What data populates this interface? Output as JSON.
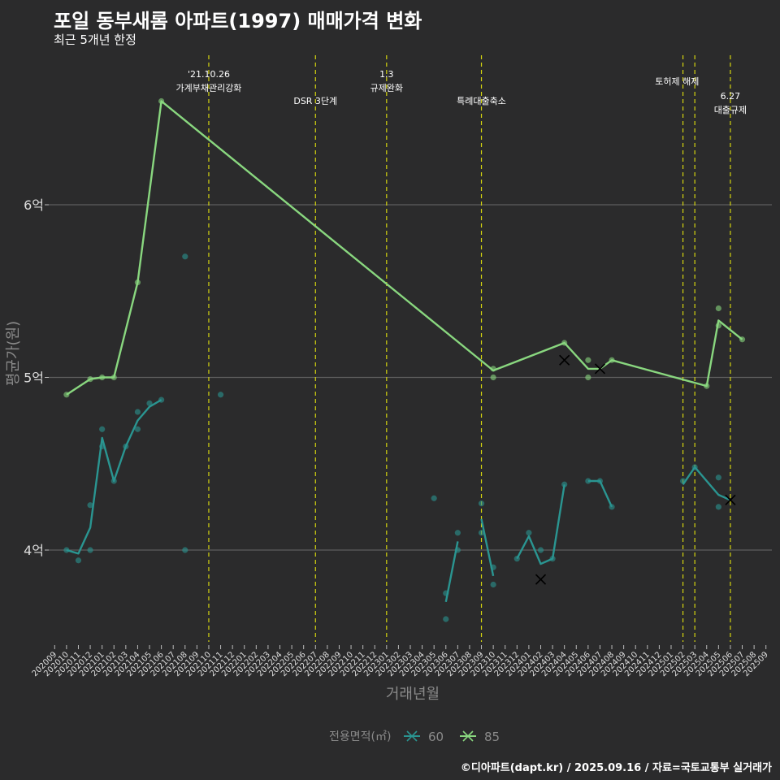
{
  "chart_data": {
    "type": "line",
    "title": "포일 동부새롬 아파트(1997) 매매가격 변화",
    "subtitle": "최근 5개년 한정",
    "xlabel": "거래년월",
    "ylabel": "평균가(원)",
    "caption": "©디아파트(dapt.kr) / 2025.09.16 / 자료=국토교통부 실거래가",
    "legend_title": "전용면적(㎡)",
    "months": [
      "202009",
      "202010",
      "202011",
      "202012",
      "202101",
      "202102",
      "202103",
      "202104",
      "202105",
      "202106",
      "202107",
      "202108",
      "202109",
      "202110",
      "202111",
      "202112",
      "202201",
      "202202",
      "202203",
      "202204",
      "202205",
      "202206",
      "202207",
      "202208",
      "202209",
      "202210",
      "202211",
      "202212",
      "202301",
      "202302",
      "202303",
      "202304",
      "202305",
      "202306",
      "202307",
      "202308",
      "202309",
      "202310",
      "202311",
      "202312",
      "202401",
      "202402",
      "202403",
      "202404",
      "202405",
      "202406",
      "202407",
      "202408",
      "202409",
      "202410",
      "202411",
      "202412",
      "202501",
      "202502",
      "202503",
      "202504",
      "202505",
      "202506",
      "202507",
      "202508",
      "202509"
    ],
    "y_ticks": [
      {
        "v": 4,
        "label": "4억"
      },
      {
        "v": 5,
        "label": "5억"
      },
      {
        "v": 6,
        "label": "6억"
      }
    ],
    "ylim": [
      3.5,
      6.9
    ],
    "series": [
      {
        "name": "60",
        "color": "#2a9591",
        "line": [
          [
            1,
            4.0
          ],
          [
            2,
            3.98
          ],
          [
            3,
            4.13
          ],
          [
            4,
            4.65
          ],
          [
            5,
            4.4
          ],
          [
            6,
            4.6
          ],
          [
            7,
            4.75
          ],
          [
            8,
            4.83
          ],
          [
            9,
            4.87
          ],
          null,
          [
            33,
            3.7
          ],
          [
            34,
            4.05
          ],
          null,
          [
            36,
            4.18
          ],
          [
            37,
            3.85
          ],
          null,
          [
            39,
            3.95
          ],
          [
            40,
            4.08
          ],
          [
            41,
            3.92
          ],
          [
            42,
            3.95
          ],
          [
            43,
            4.38
          ],
          null,
          [
            45,
            4.4
          ],
          [
            46,
            4.4
          ],
          [
            47,
            4.25
          ],
          null,
          [
            53,
            4.38
          ],
          [
            54,
            4.48
          ],
          [
            56,
            4.32
          ],
          [
            57,
            4.29
          ]
        ],
        "points": [
          [
            1,
            4.0
          ],
          [
            2,
            3.94
          ],
          [
            3,
            4.26
          ],
          [
            3,
            4.0
          ],
          [
            4,
            4.7
          ],
          [
            4,
            4.6
          ],
          [
            5,
            4.4
          ],
          [
            6,
            4.6
          ],
          [
            7,
            4.8
          ],
          [
            7,
            4.7
          ],
          [
            8,
            4.85
          ],
          [
            9,
            4.87
          ],
          [
            11,
            5.7
          ],
          [
            11,
            4.0
          ],
          [
            14,
            4.9
          ],
          [
            32,
            4.3
          ],
          [
            33,
            3.75
          ],
          [
            33,
            3.6
          ],
          [
            34,
            4.1
          ],
          [
            34,
            4.0
          ],
          [
            36,
            4.27
          ],
          [
            36,
            4.1
          ],
          [
            37,
            3.9
          ],
          [
            37,
            3.8
          ],
          [
            39,
            3.95
          ],
          [
            40,
            4.1
          ],
          [
            41,
            4.0
          ],
          [
            42,
            3.95
          ],
          [
            43,
            4.38
          ],
          [
            45,
            4.4
          ],
          [
            46,
            4.4
          ],
          [
            47,
            4.25
          ],
          [
            53,
            4.4
          ],
          [
            54,
            4.48
          ],
          [
            56,
            4.42
          ],
          [
            56,
            4.25
          ]
        ],
        "cancelled": [
          [
            41,
            3.83
          ],
          [
            57,
            4.29
          ]
        ]
      },
      {
        "name": "85",
        "color": "#89d77f",
        "line": [
          [
            1,
            4.9
          ],
          [
            3,
            4.99
          ],
          [
            4,
            5.0
          ],
          [
            5,
            5.0
          ],
          [
            7,
            5.55
          ],
          [
            9,
            6.6
          ],
          [
            37,
            5.04
          ],
          [
            43,
            5.2
          ],
          [
            45,
            5.05
          ],
          [
            46,
            5.05
          ],
          [
            47,
            5.1
          ],
          [
            55,
            4.95
          ],
          [
            56,
            5.33
          ],
          [
            58,
            5.22
          ]
        ],
        "points": [
          [
            1,
            4.9
          ],
          [
            3,
            4.99
          ],
          [
            4,
            5.0
          ],
          [
            5,
            5.0
          ],
          [
            7,
            5.55
          ],
          [
            9,
            6.6
          ],
          [
            37,
            5.05
          ],
          [
            37,
            5.0
          ],
          [
            43,
            5.2
          ],
          [
            45,
            5.1
          ],
          [
            45,
            5.0
          ],
          [
            47,
            5.1
          ],
          [
            55,
            4.95
          ],
          [
            56,
            5.4
          ],
          [
            56,
            5.3
          ],
          [
            58,
            5.22
          ]
        ],
        "cancelled": [
          [
            43,
            5.1
          ],
          [
            46,
            5.05
          ]
        ]
      }
    ],
    "annotations": [
      {
        "x": 13,
        "lines": [
          "'21.10.26",
          "가계부채관리강화"
        ],
        "level": 0
      },
      {
        "x": 22,
        "lines": [
          "DSR 3단계"
        ],
        "level": 2
      },
      {
        "x": 28,
        "lines": [
          "1.3",
          "규제완화"
        ],
        "level": 0
      },
      {
        "x": 36,
        "lines": [
          "특례대출축소"
        ],
        "level": 2
      },
      {
        "x": 53,
        "lines": [
          "토허제 해제"
        ],
        "level": 1,
        "label_x": 52.5
      },
      {
        "x": 54,
        "lines": [],
        "level": 1
      },
      {
        "x": 57,
        "lines": [
          "6.27",
          "대출규제"
        ],
        "level": 3
      }
    ]
  }
}
